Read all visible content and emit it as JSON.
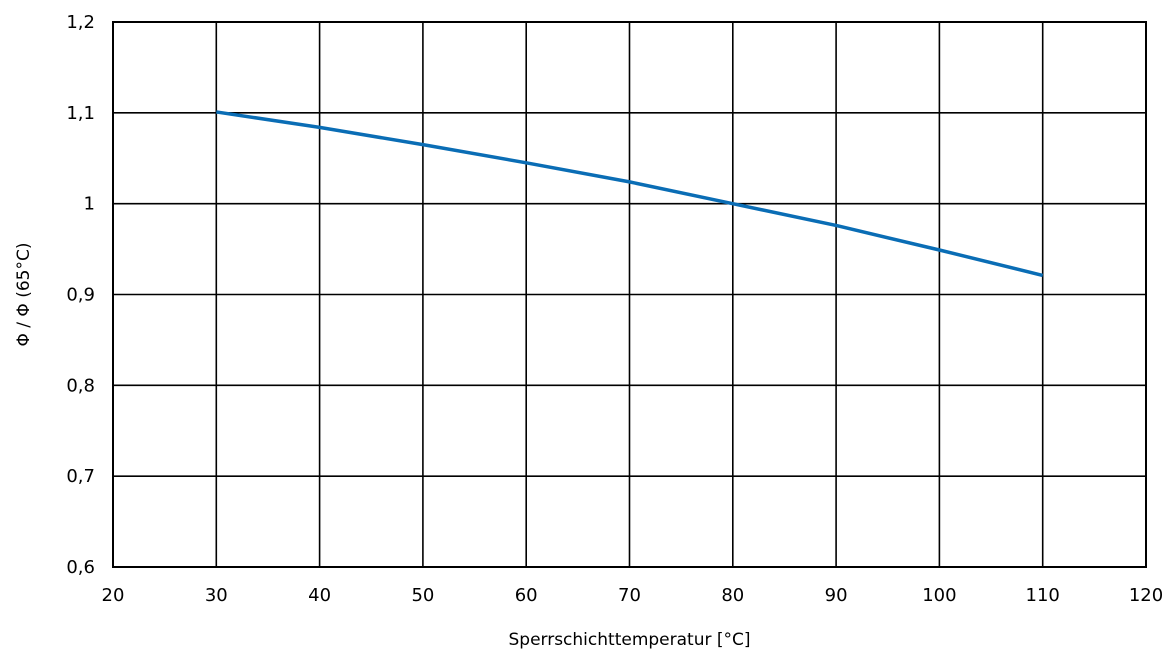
{
  "chart_data": {
    "type": "line",
    "title": "",
    "xlabel": "Sperrschichttemperatur [°C]",
    "ylabel": "Φ / Φ (65°C)",
    "xlim": [
      20,
      120
    ],
    "ylim": [
      0.6,
      1.2
    ],
    "x_ticks": [
      20,
      30,
      40,
      50,
      60,
      70,
      80,
      90,
      100,
      110,
      120
    ],
    "y_ticks": [
      0.6,
      0.7,
      0.8,
      0.9,
      1.0,
      1.1,
      1.2
    ],
    "x_tick_labels": [
      "20",
      "30",
      "40",
      "50",
      "60",
      "70",
      "80",
      "90",
      "100",
      "110",
      "120"
    ],
    "y_tick_labels": [
      "0,6",
      "0,7",
      "0,8",
      "0,9",
      "1",
      "1,1",
      "1,2"
    ],
    "grid": true,
    "legend": "none",
    "series": [
      {
        "color": "#0a6db5",
        "x": [
          30,
          40,
          50,
          60,
          70,
          80,
          90,
          100,
          110
        ],
        "y": [
          1.101,
          1.084,
          1.065,
          1.045,
          1.024,
          1.0,
          0.976,
          0.949,
          0.921
        ]
      }
    ]
  }
}
